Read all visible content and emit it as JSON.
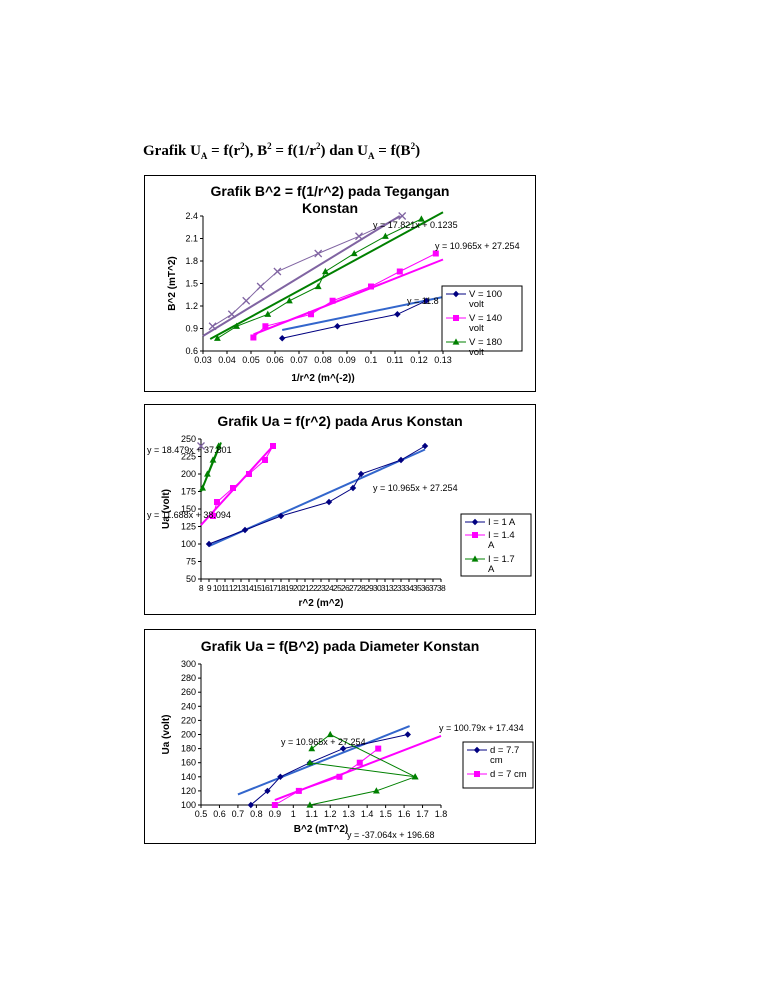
{
  "doc_title": {
    "prefix": "Grafik U",
    "sub1": "A",
    "p2": " = f(r",
    "sup1": "2",
    "p3": "), B",
    "sup2": "2",
    "p4": " = f(1/r",
    "sup3": "2",
    "p5": ") dan U",
    "sub2": "A",
    "p6": " = f(B",
    "sup4": "2",
    "p7": ")"
  },
  "chart_data": [
    {
      "type": "scatter",
      "title": [
        "Grafik B^2 = f(1/r^2) pada Tegangan",
        "Konstan"
      ],
      "xlabel": "1/r^2 (m^(-2))",
      "ylabel": "B^2 (mT^2)",
      "xlim": [
        0.03,
        0.13
      ],
      "ylim": [
        0.6,
        2.4
      ],
      "x_ticks": [
        0.03,
        0.04,
        0.05,
        0.06,
        0.07,
        0.08,
        0.09,
        0.1,
        0.11,
        0.12,
        0.13
      ],
      "x_tick_labels": [
        "0.03",
        "0.04",
        "0.05",
        "0.06",
        "0.07",
        "0.08",
        "0.09",
        "0.1",
        "0.11",
        "0.12",
        "0.13"
      ],
      "y_ticks": [
        0.6,
        0.9,
        1.2,
        1.5,
        1.8,
        2.1,
        2.4
      ],
      "y_tick_labels": [
        "0.6",
        "0.9",
        "1.2",
        "1.5",
        "1.8",
        "2.1",
        "2.4"
      ],
      "grid": false,
      "legend_position": "right",
      "series": [
        {
          "name": [
            "V = 100",
            "volt"
          ],
          "color": "#000080",
          "marker": "diamond",
          "x": [
            0.063,
            0.086,
            0.111,
            0.123
          ],
          "y": [
            0.77,
            0.93,
            1.09,
            1.27
          ]
        },
        {
          "name": [
            "V = 140",
            "volt"
          ],
          "color": "#ff00ff",
          "marker": "square",
          "x": [
            0.051,
            0.056,
            0.075,
            0.084,
            0.1,
            0.112,
            0.127
          ],
          "y": [
            0.78,
            0.93,
            1.09,
            1.27,
            1.46,
            1.66,
            1.9
          ]
        },
        {
          "name": [
            "V = 180",
            "volt"
          ],
          "color": "#008000",
          "marker": "triangle",
          "x": [
            0.036,
            0.044,
            0.057,
            0.066,
            0.078,
            0.081,
            0.093,
            0.106,
            0.121
          ],
          "y": [
            0.77,
            0.93,
            1.09,
            1.27,
            1.46,
            1.66,
            1.9,
            2.13,
            2.36
          ]
        },
        {
          "name": "",
          "color": "#8064a2",
          "marker": "x",
          "x": [
            0.034,
            0.042,
            0.048,
            0.054,
            0.061,
            0.078,
            0.095,
            0.113
          ],
          "y": [
            0.93,
            1.09,
            1.27,
            1.46,
            1.66,
            1.9,
            2.13,
            2.4
          ]
        }
      ],
      "trendlines": [
        {
          "color": "#3366cc",
          "x": [
            0.063,
            0.13
          ],
          "y": [
            0.88,
            1.32
          ]
        },
        {
          "color": "#ff00ff",
          "x": [
            0.051,
            0.13
          ],
          "y": [
            0.82,
            1.82
          ]
        },
        {
          "color": "#008000",
          "x": [
            0.033,
            0.13
          ],
          "y": [
            0.76,
            2.45
          ]
        },
        {
          "color": "#8064a2",
          "x": [
            0.03,
            0.112
          ],
          "y": [
            0.8,
            2.4
          ]
        }
      ],
      "equations": [
        "y = 17.821x + 0.1235",
        "y = 10.965x + 27.254",
        "y = 11.8"
      ]
    },
    {
      "type": "scatter",
      "title": [
        "Grafik Ua = f(r^2) pada Arus Konstan"
      ],
      "xlabel": "r^2 (m^2)",
      "ylabel": "Ua (volt)",
      "xlim": [
        8,
        38
      ],
      "ylim": [
        50,
        250
      ],
      "x_ticks": [
        8,
        9,
        10,
        11,
        12,
        13,
        14,
        15,
        16,
        17,
        18,
        19,
        20,
        21,
        22,
        23,
        24,
        25,
        26,
        27,
        28,
        29,
        30,
        31,
        32,
        33,
        34,
        35,
        36,
        37,
        38
      ],
      "x_tick_labels": [
        "8",
        "9",
        "10",
        "11",
        "12",
        "13",
        "14",
        "15",
        "16",
        "17",
        "18",
        "19",
        "20",
        "21",
        "22",
        "23",
        "24",
        "25",
        "26",
        "27",
        "28",
        "29",
        "30",
        "31",
        "32",
        "33",
        "34",
        "35",
        "36",
        "37",
        "38"
      ],
      "y_ticks": [
        50,
        75,
        100,
        125,
        150,
        175,
        200,
        225,
        250
      ],
      "y_tick_labels": [
        "50",
        "75",
        "100",
        "125",
        "150",
        "175",
        "200",
        "225",
        "250"
      ],
      "grid": false,
      "legend_position": "right",
      "series": [
        {
          "name": [
            "I = 1 A"
          ],
          "color": "#000080",
          "marker": "diamond",
          "x": [
            9,
            13.5,
            18,
            24,
            27,
            28,
            33,
            36
          ],
          "y": [
            100,
            120,
            140,
            160,
            180,
            200,
            220,
            240
          ]
        },
        {
          "name": [
            "I = 1.4",
            "A"
          ],
          "color": "#ff00ff",
          "marker": "square",
          "x": [
            9.5,
            10,
            12,
            14,
            16,
            17
          ],
          "y": [
            140,
            160,
            180,
            200,
            220,
            240
          ]
        },
        {
          "name": [
            "I = 1.7",
            "A"
          ],
          "color": "#008000",
          "marker": "triangle",
          "x": [
            8.2,
            8.8,
            9.5,
            10.2
          ],
          "y": [
            180,
            200,
            220,
            240
          ]
        },
        {
          "name": "",
          "color": "#8064a2",
          "marker": "x",
          "x": [
            8
          ],
          "y": [
            240
          ]
        }
      ],
      "trendlines": [
        {
          "color": "#3366cc",
          "x": [
            9,
            36
          ],
          "y": [
            97,
            235
          ]
        },
        {
          "color": "#ff00ff",
          "x": [
            8,
            17
          ],
          "y": [
            127,
            240
          ]
        },
        {
          "color": "#008000",
          "x": [
            8,
            10.5
          ],
          "y": [
            175,
            245
          ]
        }
      ],
      "equations": [
        "y = 18.479x + 37.801",
        "y = 10.965x + 27.254",
        "y = 11.688x + 38.094"
      ]
    },
    {
      "type": "scatter",
      "title": [
        "Grafik Ua = f(B^2) pada Diameter Konstan"
      ],
      "xlabel": "B^2 (mT^2)",
      "ylabel": "Ua (volt)",
      "xlim": [
        0.5,
        1.8
      ],
      "ylim": [
        100,
        300
      ],
      "x_ticks": [
        0.5,
        0.6,
        0.7,
        0.8,
        0.9,
        1,
        1.1,
        1.2,
        1.3,
        1.4,
        1.5,
        1.6,
        1.7,
        1.8
      ],
      "x_tick_labels": [
        "0.5",
        "0.6",
        "0.7",
        "0.8",
        "0.9",
        "1",
        "1.1",
        "1.2",
        "1.3",
        "1.4",
        "1.5",
        "1.6",
        "1.7",
        "1.8"
      ],
      "y_ticks": [
        100,
        120,
        140,
        160,
        180,
        200,
        220,
        240,
        260,
        280,
        300
      ],
      "y_tick_labels": [
        "100",
        "120",
        "140",
        "160",
        "180",
        "200",
        "220",
        "240",
        "260",
        "280",
        "300"
      ],
      "grid": false,
      "legend_position": "right",
      "series": [
        {
          "name": [
            "d = 7.7",
            "cm"
          ],
          "color": "#000080",
          "marker": "diamond",
          "x": [
            0.77,
            0.86,
            0.93,
            1.09,
            1.27,
            1.62
          ],
          "y": [
            100,
            120,
            140,
            160,
            180,
            200
          ]
        },
        {
          "name": [
            "d = 7 cm"
          ],
          "color": "#ff00ff",
          "marker": "square",
          "x": [
            0.9,
            1.03,
            1.25,
            1.36,
            1.46
          ],
          "y": [
            100,
            120,
            140,
            160,
            180
          ]
        },
        {
          "name": "",
          "color": "#008000",
          "marker": "triangle",
          "x": [
            1.09,
            1.45,
            1.66,
            1.09,
            1.66,
            1.2,
            1.1
          ],
          "y": [
            100,
            120,
            140,
            160,
            140,
            200,
            180
          ]
        }
      ],
      "trendlines": [
        {
          "color": "#3366cc",
          "x": [
            0.7,
            1.63
          ],
          "y": [
            115,
            212
          ]
        },
        {
          "color": "#ff00ff",
          "x": [
            0.9,
            1.8
          ],
          "y": [
            107,
            198
          ]
        }
      ],
      "equations": [
        "y = 100.79x + 17.434",
        "y = 10.965x + 27.254",
        "y = -37.064x + 196.68"
      ]
    }
  ]
}
